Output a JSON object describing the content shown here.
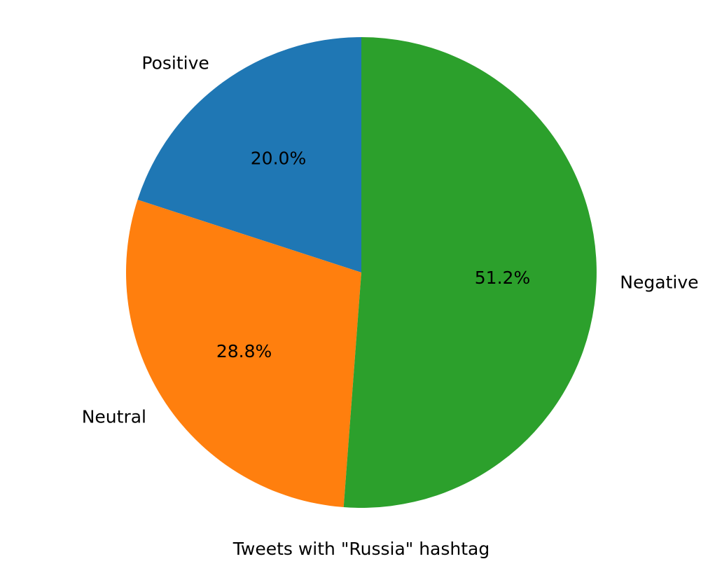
{
  "chart_data": {
    "type": "pie",
    "title": "",
    "xlabel": "Tweets with \"Russia\" hashtag",
    "ylabel": "",
    "legend": "none",
    "grid": false,
    "start_angle_deg": 90,
    "direction": "counterclockwise",
    "slices": [
      {
        "label": "Positive",
        "value": 20.0,
        "pct_label": "20.0%",
        "color": "#1f77b4"
      },
      {
        "label": "Neutral",
        "value": 28.8,
        "pct_label": "28.8%",
        "color": "#ff7f0e"
      },
      {
        "label": "Negative",
        "value": 51.2,
        "pct_label": "51.2%",
        "color": "#2ca02c"
      }
    ]
  }
}
